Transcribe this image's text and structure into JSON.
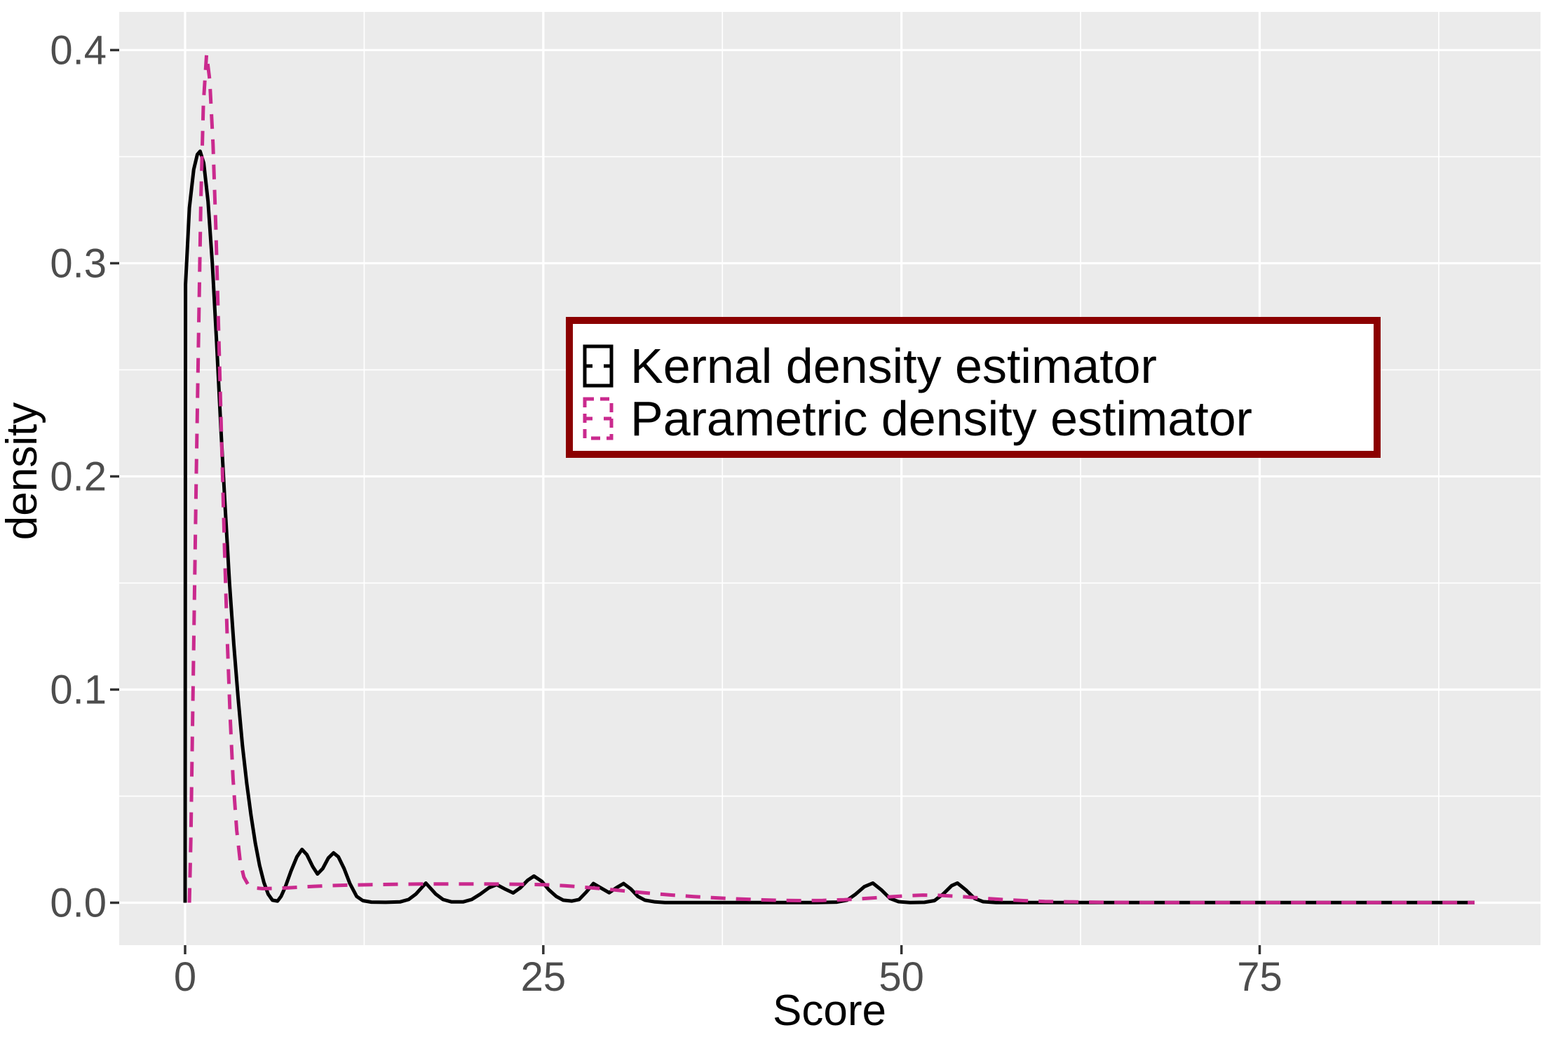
{
  "figure": {
    "kind": "ggplot-style density plot",
    "background": "#FFFFFF"
  },
  "style": {
    "panel_bg": "#EBEBEB",
    "grid_color": "#FFFFFF",
    "tick_label_color": "#4D4D4D",
    "tick_mark_color": "#333333",
    "axis_title_color": "#000000",
    "kde_color": "#000000",
    "parametric_color": "#CA2A8E",
    "legend_border_color": "#8B0000",
    "legend_bg": "#FFFFFF"
  },
  "legend": {
    "border_color": "#8B0000",
    "background": "#FFFFFF",
    "entries": [
      {
        "label": "Kernal density estimator",
        "color": "#000000",
        "line_style": "solid"
      },
      {
        "label": "Parametric density estimator",
        "color": "#CA2A8E",
        "line_style": "dashed"
      }
    ]
  },
  "chart_data": {
    "type": "line",
    "title": "",
    "xlabel": "Score",
    "ylabel": "density",
    "xlim": [
      -4.6,
      94.6
    ],
    "ylim": [
      -0.0199,
      0.4179
    ],
    "grid": true,
    "legend_position": "inside top-center",
    "x_ticks": [
      0,
      25,
      50,
      75
    ],
    "x_tick_labels": [
      "0",
      "25",
      "50",
      "75"
    ],
    "x_minor_ticks": [
      12.5,
      37.5,
      62.5,
      87.5
    ],
    "y_ticks": [
      0.0,
      0.1,
      0.2,
      0.3,
      0.4
    ],
    "y_tick_labels": [
      "0.0",
      "0.1",
      "0.2",
      "0.3",
      "0.4"
    ],
    "y_minor_ticks": [
      0.05,
      0.15,
      0.25,
      0.35
    ],
    "series": [
      {
        "name": "Kernal density estimator",
        "color": "#000000",
        "dash": "solid",
        "peak": {
          "x": 1.05,
          "y": 0.3525
        },
        "points": [
          [
            0,
            0
          ],
          [
            0.03,
            0.29
          ],
          [
            0.3,
            0.326
          ],
          [
            0.6,
            0.344
          ],
          [
            0.85,
            0.351
          ],
          [
            1.05,
            0.3525
          ],
          [
            1.3,
            0.347
          ],
          [
            1.6,
            0.329
          ],
          [
            1.9,
            0.3
          ],
          [
            2.2,
            0.263
          ],
          [
            2.5,
            0.222
          ],
          [
            2.8,
            0.185
          ],
          [
            3.1,
            0.15
          ],
          [
            3.4,
            0.121
          ],
          [
            3.7,
            0.096
          ],
          [
            4,
            0.074
          ],
          [
            4.3,
            0.056
          ],
          [
            4.6,
            0.041
          ],
          [
            4.9,
            0.028
          ],
          [
            5.2,
            0.0175
          ],
          [
            5.5,
            0.0095
          ],
          [
            5.8,
            0.004
          ],
          [
            6.1,
            0.0012
          ],
          [
            6.45,
            0.0008
          ],
          [
            6.7,
            0.003
          ],
          [
            7,
            0.0075
          ],
          [
            7.4,
            0.015
          ],
          [
            7.8,
            0.0215
          ],
          [
            8.16,
            0.025
          ],
          [
            8.5,
            0.0225
          ],
          [
            8.9,
            0.017
          ],
          [
            9.24,
            0.0135
          ],
          [
            9.6,
            0.016
          ],
          [
            10,
            0.021
          ],
          [
            10.36,
            0.0234
          ],
          [
            10.7,
            0.0215
          ],
          [
            11.1,
            0.016
          ],
          [
            11.5,
            0.009
          ],
          [
            11.97,
            0.003
          ],
          [
            12.4,
            0.001
          ],
          [
            13,
            0.0003
          ],
          [
            14,
            0.0002
          ],
          [
            15,
            0.0004
          ],
          [
            15.6,
            0.0015
          ],
          [
            16.1,
            0.004
          ],
          [
            16.8,
            0.0092
          ],
          [
            17.5,
            0.004
          ],
          [
            18,
            0.0015
          ],
          [
            18.6,
            0.0004
          ],
          [
            19.4,
            0.0004
          ],
          [
            20,
            0.0015
          ],
          [
            20.6,
            0.004
          ],
          [
            21.2,
            0.007
          ],
          [
            21.75,
            0.0085
          ],
          [
            22.3,
            0.0065
          ],
          [
            22.9,
            0.0046
          ],
          [
            23.4,
            0.007
          ],
          [
            23.9,
            0.0105
          ],
          [
            24.35,
            0.0125
          ],
          [
            24.9,
            0.01
          ],
          [
            25.4,
            0.006
          ],
          [
            25.9,
            0.003
          ],
          [
            26.4,
            0.0012
          ],
          [
            27,
            0.0008
          ],
          [
            27.5,
            0.0015
          ],
          [
            28,
            0.005
          ],
          [
            28.5,
            0.009
          ],
          [
            29,
            0.007
          ],
          [
            29.6,
            0.0047
          ],
          [
            30.1,
            0.007
          ],
          [
            30.6,
            0.009
          ],
          [
            31.1,
            0.0065
          ],
          [
            31.6,
            0.003
          ],
          [
            32.1,
            0.0012
          ],
          [
            32.8,
            0.0004
          ],
          [
            33.5,
            0.0001
          ],
          [
            36,
            0.0001
          ],
          [
            40,
            0.0001
          ],
          [
            44,
            0.0001
          ],
          [
            45.5,
            0.0003
          ],
          [
            46.2,
            0.0012
          ],
          [
            46.8,
            0.004
          ],
          [
            47.4,
            0.0075
          ],
          [
            48,
            0.0092
          ],
          [
            48.6,
            0.006
          ],
          [
            49.2,
            0.002
          ],
          [
            49.8,
            0.0005
          ],
          [
            50.6,
            0.0001
          ],
          [
            51.6,
            0.0002
          ],
          [
            52.3,
            0.001
          ],
          [
            52.9,
            0.004
          ],
          [
            53.5,
            0.008
          ],
          [
            53.9,
            0.0092
          ],
          [
            54.5,
            0.006
          ],
          [
            55.1,
            0.002
          ],
          [
            55.7,
            0.0005
          ],
          [
            56.6,
            0.0001
          ],
          [
            58,
            0.0001
          ],
          [
            62,
            0.0001
          ],
          [
            66,
            0.0001
          ],
          [
            70,
            0.0001
          ],
          [
            75,
            0.0001
          ],
          [
            80,
            0.0001
          ],
          [
            85,
            0.0001
          ],
          [
            90,
            0.0001
          ]
        ]
      },
      {
        "name": "Parametric density estimator",
        "color": "#CA2A8E",
        "dash": "dashed",
        "peak": {
          "x": 1.5,
          "y": 0.398
        },
        "points": [
          [
            0.3,
            0
          ],
          [
            0.4,
            0.03
          ],
          [
            0.5,
            0.075
          ],
          [
            0.62,
            0.13
          ],
          [
            0.78,
            0.2
          ],
          [
            0.95,
            0.27
          ],
          [
            1.1,
            0.33
          ],
          [
            1.28,
            0.375
          ],
          [
            1.5,
            0.398
          ],
          [
            1.72,
            0.386
          ],
          [
            1.95,
            0.356
          ],
          [
            2.15,
            0.316
          ],
          [
            2.35,
            0.266
          ],
          [
            2.55,
            0.216
          ],
          [
            2.75,
            0.166
          ],
          [
            2.95,
            0.122
          ],
          [
            3.15,
            0.086
          ],
          [
            3.35,
            0.058
          ],
          [
            3.6,
            0.034
          ],
          [
            3.85,
            0.019
          ],
          [
            4.1,
            0.012
          ],
          [
            4.4,
            0.0085
          ],
          [
            4.8,
            0.007
          ],
          [
            5.4,
            0.0066
          ],
          [
            6.2,
            0.0067
          ],
          [
            7,
            0.0069
          ],
          [
            8,
            0.0073
          ],
          [
            9,
            0.0077
          ],
          [
            10,
            0.008
          ],
          [
            11.5,
            0.0083
          ],
          [
            13,
            0.0085
          ],
          [
            15,
            0.0087
          ],
          [
            17,
            0.0088
          ],
          [
            19,
            0.0088
          ],
          [
            21,
            0.0088
          ],
          [
            23,
            0.0087
          ],
          [
            25,
            0.0085
          ],
          [
            26.5,
            0.008
          ],
          [
            28,
            0.0072
          ],
          [
            29.5,
            0.0063
          ],
          [
            31,
            0.0053
          ],
          [
            32.5,
            0.0044
          ],
          [
            34,
            0.0036
          ],
          [
            35.5,
            0.0029
          ],
          [
            37,
            0.0023
          ],
          [
            38.5,
            0.0018
          ],
          [
            40,
            0.0014
          ],
          [
            41.5,
            0.0011
          ],
          [
            43,
            0.001
          ],
          [
            44.5,
            0.0011
          ],
          [
            46,
            0.0014
          ],
          [
            47.5,
            0.002
          ],
          [
            49,
            0.0027
          ],
          [
            50.5,
            0.0033
          ],
          [
            51.5,
            0.0036
          ],
          [
            52.5,
            0.0035
          ],
          [
            54,
            0.003
          ],
          [
            55.5,
            0.0022
          ],
          [
            57,
            0.0015
          ],
          [
            58.5,
            0.001
          ],
          [
            60,
            0.0006
          ],
          [
            62,
            0.0004
          ],
          [
            64,
            0.0002
          ],
          [
            67,
            0.0001
          ],
          [
            70,
            0.0001
          ],
          [
            75,
            0.0001
          ],
          [
            80,
            0.0001
          ],
          [
            85,
            0.0001
          ],
          [
            90,
            0.0001
          ]
        ]
      }
    ]
  }
}
